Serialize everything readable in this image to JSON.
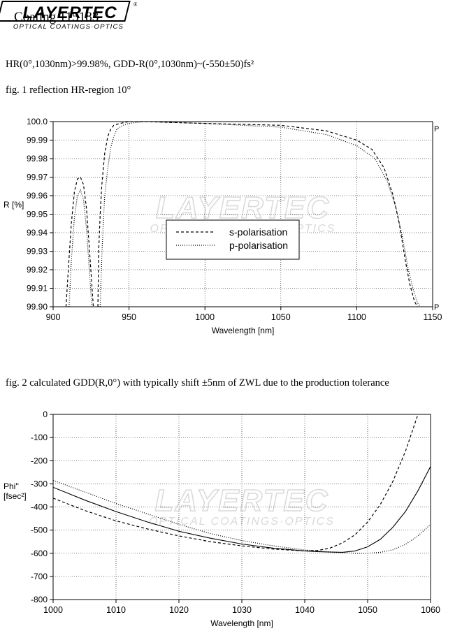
{
  "header": {
    "title": "Coating  115183",
    "logo_text": "LAYERTEC",
    "logo_registered": "®",
    "logo_tagline": "OPTICAL COATINGS·OPTICS"
  },
  "spec_line": "HR(0°,1030nm)>99.98%,  GDD-R(0°,1030nm)~(-550±50)fs²",
  "fig1_caption": "fig. 1 reflection HR-region  10°",
  "fig2_caption": "fig. 2 calculated GDD(R,0°) with typically shift ±5nm of ZWL due to the production tolerance",
  "watermark": {
    "text": "LAYERTEC",
    "tagline": "OPTICAL COATINGS·OPTICS"
  },
  "colors": {
    "line": "#000000",
    "grid": "#000000",
    "watermark": "#d9d9d9"
  },
  "chart_data": [
    {
      "type": "line",
      "xlabel": "Wavelength [nm]",
      "ylabel": "R [%]",
      "xlim": [
        900,
        1150
      ],
      "ylim": [
        99.9,
        100.0
      ],
      "xticks": [
        "900",
        "950",
        "1000",
        "1050",
        "1100",
        "1150"
      ],
      "yticks": [
        "100.0",
        "99.99",
        "99.98",
        "99.97",
        "99.96",
        "99.95",
        "99.94",
        "99.93",
        "99.92",
        "99.91",
        "99.90"
      ],
      "corner_labels": [
        "P",
        "P"
      ],
      "grid": true,
      "legend": "center",
      "series": [
        {
          "name": "s-polarisation",
          "dash": "dashed",
          "segments": [
            {
              "x": [
                908.5,
                910,
                912,
                914,
                916,
                918,
                920,
                922,
                924,
                926.5
              ],
              "y": [
                99.9,
                99.92,
                99.945,
                99.962,
                99.969,
                99.97,
                99.966,
                99.953,
                99.93,
                99.9
              ]
            },
            {
              "x": [
                929.5,
                930,
                931,
                932,
                934,
                936,
                938,
                940,
                944,
                950,
                960,
                1000,
                1050,
                1080,
                1100,
                1110,
                1118,
                1124,
                1128,
                1132,
                1135,
                1138,
                1140
              ],
              "y": [
                99.9,
                99.93,
                99.95,
                99.965,
                99.983,
                99.992,
                99.996,
                99.998,
                99.999,
                100.0,
                100.0,
                99.999,
                99.998,
                99.995,
                99.99,
                99.985,
                99.975,
                99.96,
                99.945,
                99.925,
                99.912,
                99.903,
                99.9
              ]
            }
          ]
        },
        {
          "name": "p-polarisation",
          "dash": "dotted",
          "segments": [
            {
              "x": [
                910.5,
                912,
                914,
                916,
                918,
                920,
                922,
                924,
                925.5
              ],
              "y": [
                99.9,
                99.925,
                99.948,
                99.96,
                99.963,
                99.958,
                99.942,
                99.918,
                99.9
              ]
            },
            {
              "x": [
                931,
                932,
                933,
                934,
                936,
                938,
                940,
                942,
                946,
                950,
                960,
                1000,
                1050,
                1080,
                1100,
                1112,
                1120,
                1126,
                1130,
                1134,
                1137,
                1140,
                1142
              ],
              "y": [
                99.9,
                99.925,
                99.945,
                99.96,
                99.975,
                99.986,
                99.992,
                99.996,
                99.998,
                99.999,
                100.0,
                99.999,
                99.997,
                99.993,
                99.987,
                99.98,
                99.968,
                99.953,
                99.938,
                99.92,
                99.91,
                99.902,
                99.9
              ]
            }
          ]
        }
      ]
    },
    {
      "type": "line",
      "xlabel": "Wavelength [nm]",
      "ylabel": "Phi''\n[fsec²]",
      "xlim": [
        1000,
        1060
      ],
      "ylim": [
        -800,
        0
      ],
      "xticks": [
        "1000",
        "1010",
        "1020",
        "1030",
        "1040",
        "1050",
        "1060"
      ],
      "yticks": [
        "0",
        "-100",
        "-200",
        "-300",
        "-400",
        "-500",
        "-600",
        "-700",
        "-800"
      ],
      "grid": true,
      "series": [
        {
          "dash": "solid",
          "x": [
            1000,
            1005,
            1010,
            1015,
            1020,
            1025,
            1030,
            1035,
            1040,
            1042,
            1044,
            1046,
            1048,
            1050,
            1052,
            1054,
            1056,
            1058,
            1060
          ],
          "y": [
            -315,
            -370,
            -420,
            -465,
            -505,
            -535,
            -560,
            -578,
            -590,
            -593,
            -595,
            -596,
            -590,
            -572,
            -540,
            -488,
            -420,
            -330,
            -225
          ]
        },
        {
          "dash": "dashed",
          "x": [
            1000,
            1005,
            1010,
            1015,
            1020,
            1025,
            1030,
            1035,
            1040,
            1042,
            1044,
            1046,
            1048,
            1050,
            1052,
            1054,
            1056,
            1058
          ],
          "y": [
            -362,
            -415,
            -460,
            -495,
            -525,
            -550,
            -568,
            -582,
            -590,
            -588,
            -578,
            -555,
            -520,
            -465,
            -390,
            -290,
            -160,
            0
          ]
        },
        {
          "dash": "dotted",
          "x": [
            1000,
            1005,
            1010,
            1015,
            1020,
            1025,
            1030,
            1035,
            1040,
            1044,
            1048,
            1050,
            1052,
            1054,
            1056,
            1058,
            1060
          ],
          "y": [
            -285,
            -335,
            -385,
            -430,
            -475,
            -515,
            -545,
            -568,
            -586,
            -594,
            -600,
            -600,
            -596,
            -585,
            -562,
            -525,
            -475
          ]
        }
      ]
    }
  ]
}
